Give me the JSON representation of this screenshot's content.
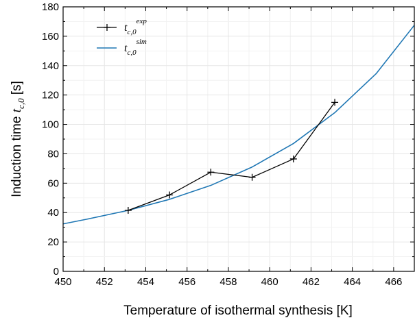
{
  "chart_data": {
    "type": "line",
    "xlabel": "Temperature of isothermal synthesis [K]",
    "ylabel": {
      "prefix": "Induction time ",
      "symbol": "t",
      "subscript": "c,0",
      "suffix": " [s]"
    },
    "xlim": [
      450,
      467
    ],
    "ylim": [
      0,
      180
    ],
    "xticks": [
      450,
      452,
      454,
      456,
      458,
      460,
      462,
      464,
      466
    ],
    "yticks": [
      0,
      20,
      40,
      60,
      80,
      100,
      120,
      140,
      160,
      180
    ],
    "grid": true,
    "legend_position": "top-left",
    "series": [
      {
        "id": "exp",
        "legend": {
          "symbol": "t",
          "subscript": "c,0",
          "superscript": "exp"
        },
        "color": "#000000",
        "marker": "plus",
        "x": [
          453.15,
          455.15,
          457.15,
          459.15,
          461.15,
          463.15
        ],
        "y": [
          41.5,
          52,
          67.5,
          64,
          76.5,
          115
        ]
      },
      {
        "id": "sim",
        "legend": {
          "symbol": "t",
          "subscript": "c,0",
          "superscript": "sim"
        },
        "color": "#1f77b4",
        "marker": "none",
        "x": [
          450,
          451.15,
          453.15,
          455.15,
          457.15,
          459.15,
          461.15,
          463.15,
          465.15,
          467
        ],
        "y": [
          32.3,
          35.5,
          41.5,
          49,
          58.5,
          71,
          87,
          108,
          134.5,
          167.5
        ]
      }
    ]
  }
}
